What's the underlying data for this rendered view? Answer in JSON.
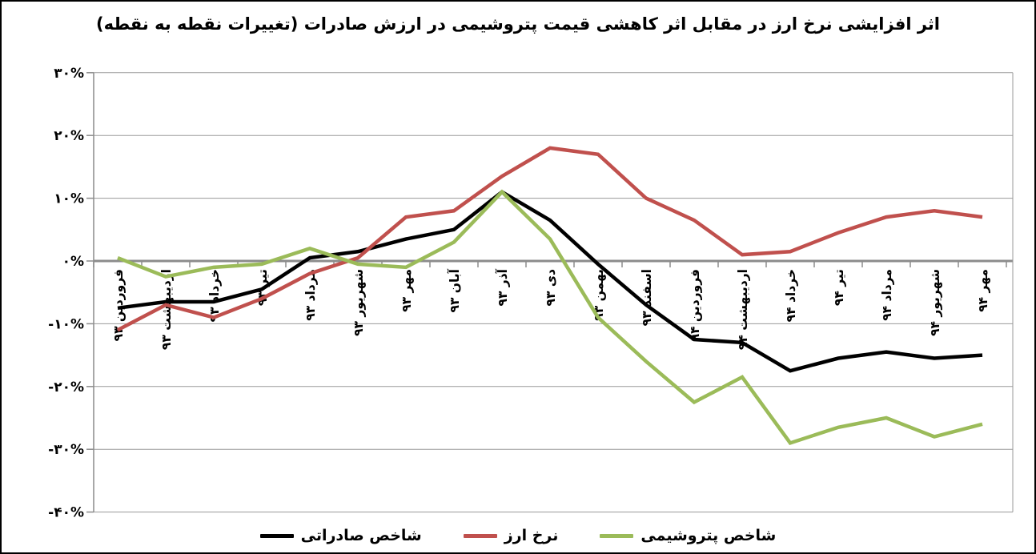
{
  "page": {
    "title": "اثر افزایشی نرخ ارز در مقابل اثر کاهشی قیمت پتروشیمی در ارزش صادرات (تغییرات نقطه به نقطه)"
  },
  "legend": {
    "items": [
      {
        "label": "شاخص صادراتی",
        "color": "#000000"
      },
      {
        "label": "نرخ ارز",
        "color": "#C0504D"
      },
      {
        "label": "شاخص پتروشیمی",
        "color": "#9BBB59"
      }
    ]
  },
  "chart_data": {
    "type": "line",
    "title": "اثر افزایشی نرخ ارز در مقابل اثر کاهشی قیمت پتروشیمی در ارزش صادرات (تغییرات نقطه به نقطه)",
    "categories": [
      "فروردین ۹۳",
      "اردیبهشت ۹۳",
      "خرداد ۹۳",
      "تیر ۹۳",
      "مرداد ۹۳",
      "شهریور ۹۳",
      "مهر ۹۳",
      "آبان ۹۳",
      "آذر ۹۳",
      "دی ۹۳",
      "بهمن ۹۳",
      "اسفند ۹۳",
      "فروردین ۹۴",
      "اردیبهشت ۹۴",
      "خرداد ۹۴",
      "تیر ۹۴",
      "مرداد ۹۴",
      "شهریور ۹۴",
      "مهر ۹۴"
    ],
    "series": [
      {
        "name": "شاخص صادراتی",
        "color": "#000000",
        "values": [
          -7.5,
          -6.5,
          -6.5,
          -4.5,
          0.5,
          1.5,
          3.5,
          5,
          11,
          6.5,
          -0.5,
          -7,
          -12.5,
          -13,
          -17.5,
          -15.5,
          -14.5,
          -15.5,
          -15
        ]
      },
      {
        "name": "نرخ ارز",
        "color": "#C0504D",
        "values": [
          -11,
          -7,
          -9,
          -6,
          -2,
          0.5,
          7,
          8,
          13.5,
          18,
          17,
          10,
          6.5,
          1,
          1.5,
          4.5,
          7,
          8,
          7
        ]
      },
      {
        "name": "شاخص پتروشیمی",
        "color": "#9BBB59",
        "values": [
          0.5,
          -2.5,
          -1,
          -0.5,
          2,
          -0.5,
          -1,
          3,
          11,
          3.5,
          -9,
          -16,
          -22.5,
          -18.5,
          -29,
          -26.5,
          -25,
          -28,
          -26
        ]
      }
    ],
    "ylim": [
      -40,
      30
    ],
    "ytick_values": [
      30,
      20,
      10,
      0,
      -10,
      -20,
      -30,
      -40
    ],
    "ytick_labels": [
      "۳۰%",
      "۲۰%",
      "۱۰%",
      "۰%",
      "-۱۰%",
      "-۲۰%",
      "-۳۰%",
      "-۴۰%"
    ],
    "grid": true,
    "x_labels_at": "zero-line",
    "x_label_rotation_deg": 90,
    "legend_position": "bottom",
    "axis_color": "#8c8c8c",
    "gridline_color": "#9a9a9a"
  }
}
